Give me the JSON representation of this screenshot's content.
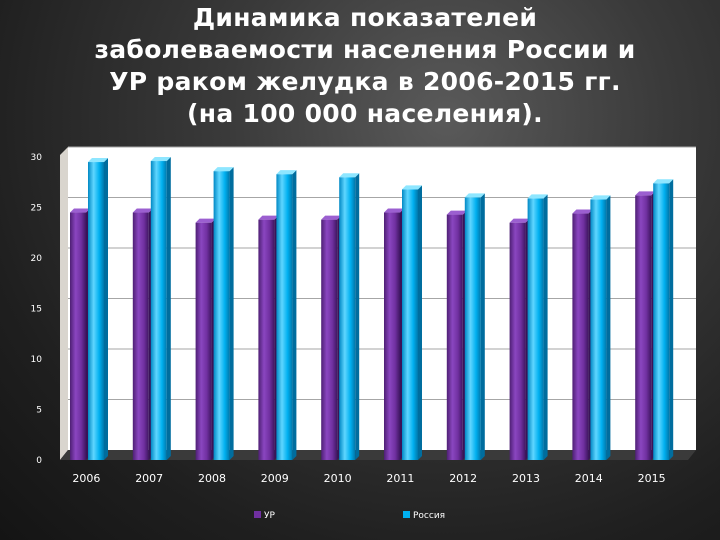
{
  "title_lines": [
    "Динамика показателей",
    "заболеваемости населения России и",
    "УР  раком желудка в 2006-2015 гг.",
    "(на 100 000 населения)."
  ],
  "chart_data": {
    "type": "bar",
    "categories": [
      "2006",
      "2007",
      "2008",
      "2009",
      "2010",
      "2011",
      "2012",
      "2013",
      "2014",
      "2015"
    ],
    "series": [
      {
        "name": "УР",
        "color": "#7030a0",
        "values": [
          24.5,
          24.5,
          23.5,
          23.8,
          23.8,
          24.5,
          24.3,
          23.5,
          24.4,
          26.2
        ]
      },
      {
        "name": "Россия",
        "color": "#00b0f0",
        "values": [
          29.5,
          29.6,
          28.6,
          28.3,
          28.0,
          26.8,
          26.0,
          25.9,
          25.8,
          27.4
        ]
      }
    ],
    "ylim": [
      0,
      30
    ],
    "yticks": [
      "0",
      "5",
      "10",
      "15",
      "20",
      "25",
      "30"
    ],
    "grid": true,
    "legend_position": "bottom"
  }
}
